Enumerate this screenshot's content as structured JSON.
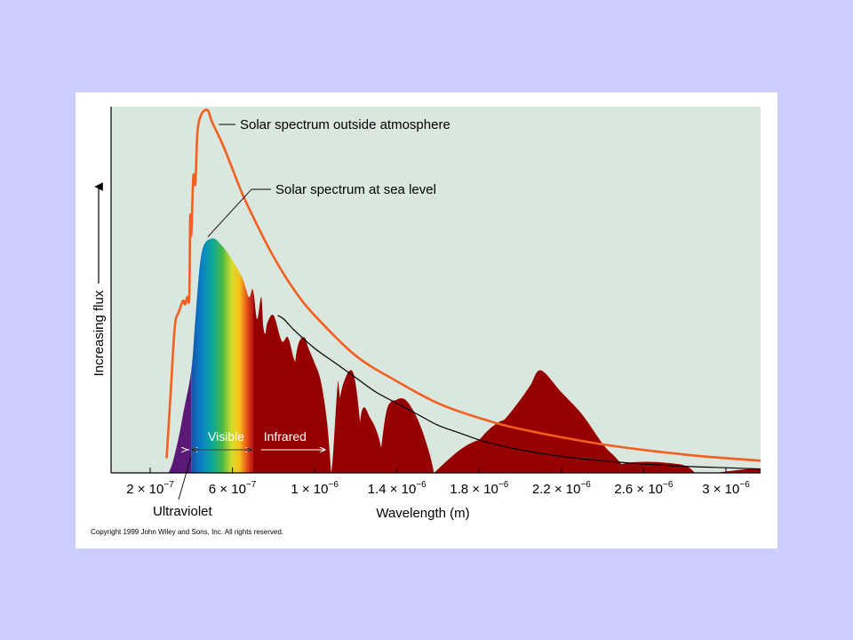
{
  "colors": {
    "page_background": "#ccccfe",
    "plot_background": "#d9e7df",
    "outside_curve": "#f25f1e",
    "sea_level_fill": "#960000",
    "envelope": "#000000",
    "ultraviolet": "#5a1877"
  },
  "chart_data": {
    "type": "area",
    "title": "",
    "xlabel": "Wavelength (m)",
    "ylabel": "Increasing flux",
    "x_unit_scale": 1e-06,
    "xlim": [
      0.05,
      3.32
    ],
    "ylim": [
      0,
      1.0
    ],
    "grid": false,
    "x_ticks": [
      {
        "x": 0.2,
        "mantissa": "2",
        "exponent": "−7"
      },
      {
        "x": 0.6,
        "mantissa": "6",
        "exponent": "−7"
      },
      {
        "x": 1.0,
        "mantissa": "1",
        "exponent": "−6"
      },
      {
        "x": 1.4,
        "mantissa": "1.4",
        "exponent": "−6"
      },
      {
        "x": 1.8,
        "mantissa": "1.8",
        "exponent": "−6"
      },
      {
        "x": 2.2,
        "mantissa": "2.2",
        "exponent": "−6"
      },
      {
        "x": 2.6,
        "mantissa": "2.6",
        "exponent": "−6"
      },
      {
        "x": 3.0,
        "mantissa": "3",
        "exponent": "−6"
      }
    ],
    "times_sign": "×",
    "base": "10",
    "series": [
      {
        "name": "Solar spectrum outside atmosphere",
        "x": [
          0.28,
          0.3,
          0.32,
          0.34,
          0.36,
          0.37,
          0.38,
          0.39,
          0.395,
          0.4,
          0.41,
          0.42,
          0.43,
          0.45,
          0.48,
          0.5,
          0.55,
          0.6,
          0.65,
          0.7,
          0.8,
          0.9,
          1.0,
          1.2,
          1.4,
          1.6,
          1.8,
          2.0,
          2.4,
          2.8,
          3.2,
          3.32
        ],
        "y": [
          0.04,
          0.22,
          0.4,
          0.44,
          0.47,
          0.46,
          0.48,
          0.48,
          0.7,
          0.65,
          0.81,
          0.79,
          0.93,
          0.98,
          0.99,
          0.96,
          0.9,
          0.83,
          0.76,
          0.7,
          0.59,
          0.5,
          0.43,
          0.32,
          0.25,
          0.19,
          0.15,
          0.12,
          0.078,
          0.05,
          0.032,
          0.028
        ]
      },
      {
        "name": "Solar spectrum at sea level",
        "x": [
          0.29,
          0.31,
          0.34,
          0.36,
          0.4,
          0.42,
          0.45,
          0.5,
          0.55,
          0.6,
          0.65,
          0.68,
          0.7,
          0.72,
          0.74,
          0.75,
          0.76,
          0.77,
          0.8,
          0.84,
          0.87,
          0.9,
          0.93,
          0.96,
          1.0,
          1.04,
          1.08,
          1.11,
          1.12,
          1.15,
          1.19,
          1.23,
          1.27,
          1.31,
          1.35,
          1.38,
          1.42,
          1.45,
          1.5,
          1.55,
          1.6,
          1.65,
          1.7,
          1.75,
          1.8,
          1.85,
          1.9,
          1.93,
          2.0,
          2.05,
          2.1,
          2.2,
          2.3,
          2.4,
          2.45,
          2.55,
          2.7,
          2.9,
          3.0,
          3.1,
          3.2,
          3.3,
          3.32
        ],
        "y": [
          0.0,
          0.03,
          0.1,
          0.16,
          0.28,
          0.42,
          0.6,
          0.64,
          0.62,
          0.58,
          0.53,
          0.48,
          0.5,
          0.42,
          0.48,
          0.4,
          0.38,
          0.41,
          0.43,
          0.36,
          0.37,
          0.31,
          0.28,
          0.29,
          0.24,
          0.0,
          0.0,
          0.23,
          0.22,
          0.03,
          0.0,
          0.17,
          0.15,
          0.1,
          0.0,
          0.0,
          0.0,
          0.0,
          0.0,
          0.0,
          0.0,
          0.0,
          0.04,
          0.06,
          0.09,
          0.12,
          0.14,
          0.15,
          0.2,
          0.24,
          0.28,
          0.22,
          0.16,
          0.08,
          0.05,
          0.0,
          0.0,
          0.0,
          0.0,
          0.0,
          0.0,
          0.0,
          0.0
        ]
      }
    ],
    "sea_level_lobes": [
      {
        "x": [
          0.88,
          0.9,
          0.92,
          0.95,
          0.97,
          1.0,
          1.03,
          1.06,
          1.08
        ],
        "y": [
          0.0,
          0.26,
          0.35,
          0.37,
          0.34,
          0.3,
          0.25,
          0.14,
          0.0
        ]
      },
      {
        "x": [
          1.09,
          1.12,
          1.15,
          1.18,
          1.2,
          1.22,
          1.24
        ],
        "y": [
          0.0,
          0.19,
          0.26,
          0.28,
          0.24,
          0.14,
          0.0
        ]
      },
      {
        "x": [
          1.31,
          1.35,
          1.4,
          1.44,
          1.48,
          1.52,
          1.56,
          1.58
        ],
        "y": [
          0.0,
          0.17,
          0.2,
          0.2,
          0.17,
          0.12,
          0.05,
          0.0
        ]
      },
      {
        "x": [
          1.58,
          1.7,
          1.8,
          1.9,
          2.0,
          2.05,
          2.1
        ],
        "y": [
          0.0,
          0.06,
          0.09,
          0.09,
          0.07,
          0.04,
          0.0
        ]
      },
      {
        "x": [
          2.4,
          2.5,
          2.6,
          2.7,
          2.8,
          2.85
        ],
        "y": [
          0.0,
          0.025,
          0.03,
          0.028,
          0.02,
          0.0
        ]
      },
      {
        "x": [
          2.95,
          3.1,
          3.2,
          3.32
        ],
        "y": [
          0.0,
          0.01,
          0.012,
          0.012
        ]
      }
    ],
    "sea_level_envelope": {
      "x": [
        0.82,
        0.85,
        0.9,
        1.0,
        1.1,
        1.2,
        1.3,
        1.4,
        1.5,
        1.6,
        1.7,
        1.8,
        1.9,
        2.0,
        2.2,
        2.4,
        2.6,
        2.8,
        3.0,
        3.2,
        3.32
      ],
      "y": [
        0.43,
        0.42,
        0.39,
        0.34,
        0.3,
        0.26,
        0.22,
        0.19,
        0.16,
        0.13,
        0.11,
        0.09,
        0.075,
        0.063,
        0.045,
        0.033,
        0.024,
        0.018,
        0.014,
        0.01,
        0.008
      ]
    },
    "visible_band": [
      0.4,
      0.7
    ],
    "ultraviolet_band": [
      0.29,
      0.4
    ],
    "annotations": [
      {
        "text": "Solar spectrum outside atmosphere",
        "anchor_x": 0.5,
        "anchor_y": 0.97
      },
      {
        "text": "Solar spectrum at sea level",
        "anchor_x": 0.48,
        "anchor_y": 0.62
      }
    ],
    "band_labels": {
      "ultraviolet": "Ultraviolet",
      "visible": "Visible",
      "infrared": "Infrared"
    }
  },
  "copyright": "Copyright 1999 John Wiley and Sons, Inc. All rights reserved."
}
